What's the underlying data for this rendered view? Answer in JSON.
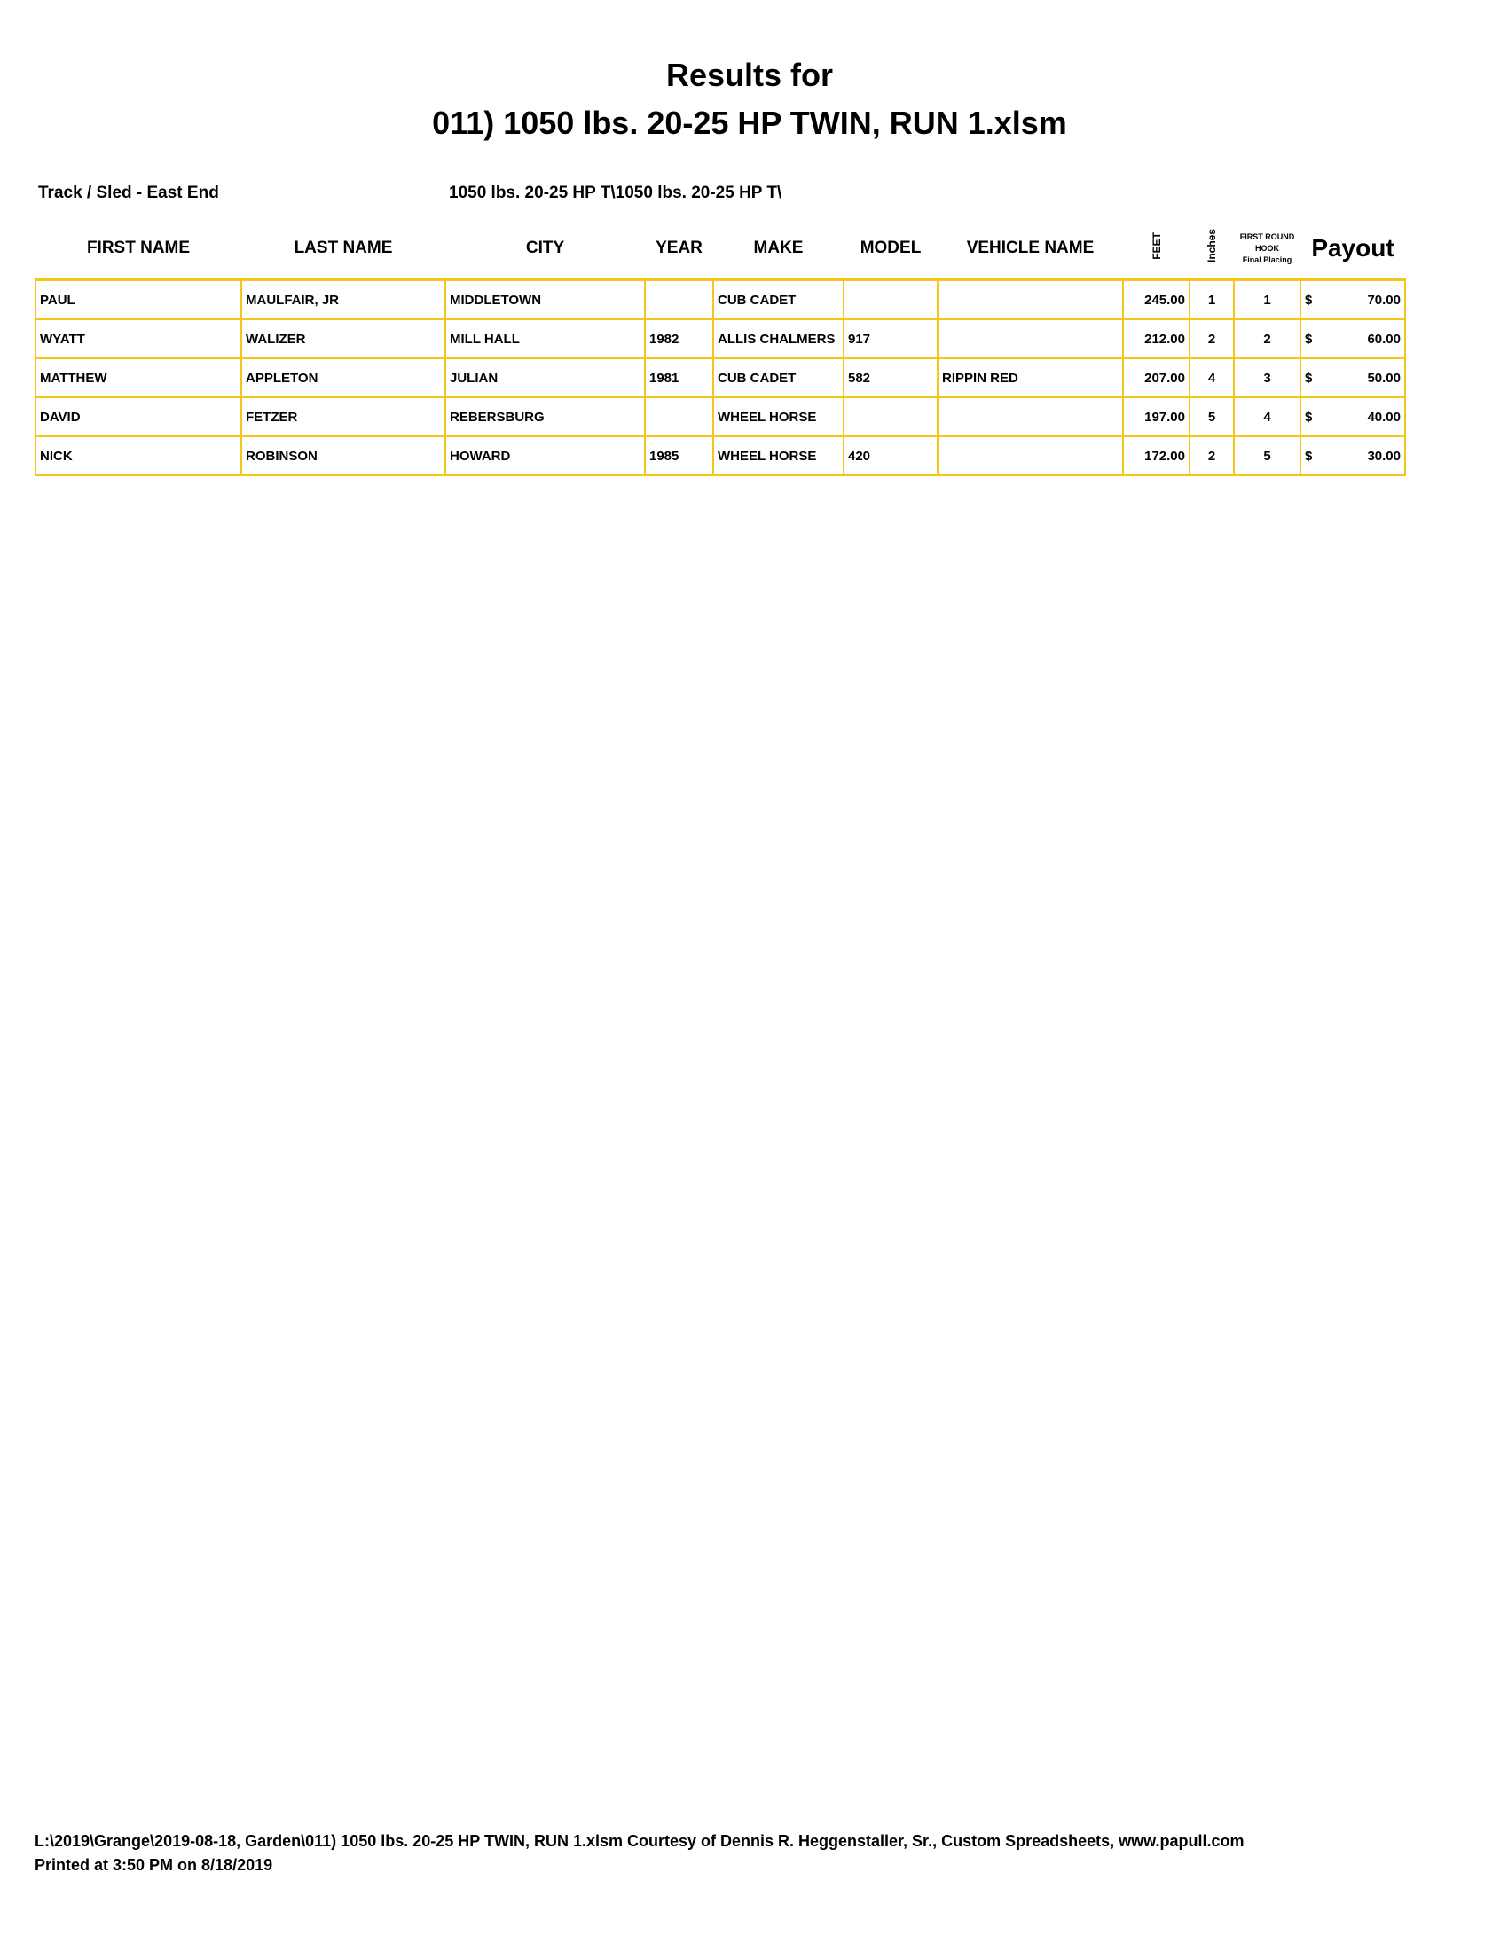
{
  "title_line1": "Results for",
  "title_line2": "011) 1050 lbs. 20-25 HP TWIN, RUN 1.xlsm",
  "track_label": "Track / Sled - East End",
  "class_label": "1050 lbs. 20-25 HP T\\1050 lbs. 20-25 HP T\\",
  "headers": {
    "first": "FIRST NAME",
    "last": "LAST NAME",
    "city": "CITY",
    "year": "YEAR",
    "make": "MAKE",
    "model": "MODEL",
    "vehicle": "VEHICLE NAME",
    "feet": "FEET",
    "inches": "Inches",
    "hook1": "FIRST ROUND",
    "hook2": "HOOK",
    "hook3": "Final Placing",
    "payout": "Payout"
  },
  "rows": [
    {
      "first": "PAUL",
      "last": "MAULFAIR, JR",
      "city": "MIDDLETOWN",
      "year": "",
      "make": "CUB CADET",
      "model": "",
      "vehicle": "",
      "feet": "245.00",
      "inches": "1",
      "place": "1",
      "cur": "$",
      "payout": "70.00"
    },
    {
      "first": "WYATT",
      "last": "WALIZER",
      "city": "MILL HALL",
      "year": "1982",
      "make": "ALLIS CHALMERS",
      "model": "917",
      "vehicle": "",
      "feet": "212.00",
      "inches": "2",
      "place": "2",
      "cur": "$",
      "payout": "60.00"
    },
    {
      "first": "MATTHEW",
      "last": "APPLETON",
      "city": "JULIAN",
      "year": "1981",
      "make": "CUB CADET",
      "model": "582",
      "vehicle": "RIPPIN RED",
      "feet": "207.00",
      "inches": "4",
      "place": "3",
      "cur": "$",
      "payout": "50.00"
    },
    {
      "first": "DAVID",
      "last": "FETZER",
      "city": "REBERSBURG",
      "year": "",
      "make": "WHEEL HORSE",
      "model": "",
      "vehicle": "",
      "feet": "197.00",
      "inches": "5",
      "place": "4",
      "cur": "$",
      "payout": "40.00"
    },
    {
      "first": "NICK",
      "last": "ROBINSON",
      "city": "HOWARD",
      "year": "1985",
      "make": "WHEEL HORSE",
      "model": "420",
      "vehicle": "",
      "feet": "172.00",
      "inches": "2",
      "place": "5",
      "cur": "$",
      "payout": "30.00"
    }
  ],
  "footer_line1": "L:\\2019\\Grange\\2019-08-18, Garden\\011) 1050 lbs. 20-25 HP TWIN, RUN 1.xlsm  Courtesy of Dennis R. Heggenstaller, Sr., Custom Spreadsheets, www.papull.com",
  "footer_line2": "Printed at 3:50 PM on 8/18/2019",
  "colors": {
    "grid": "#F5C518"
  }
}
